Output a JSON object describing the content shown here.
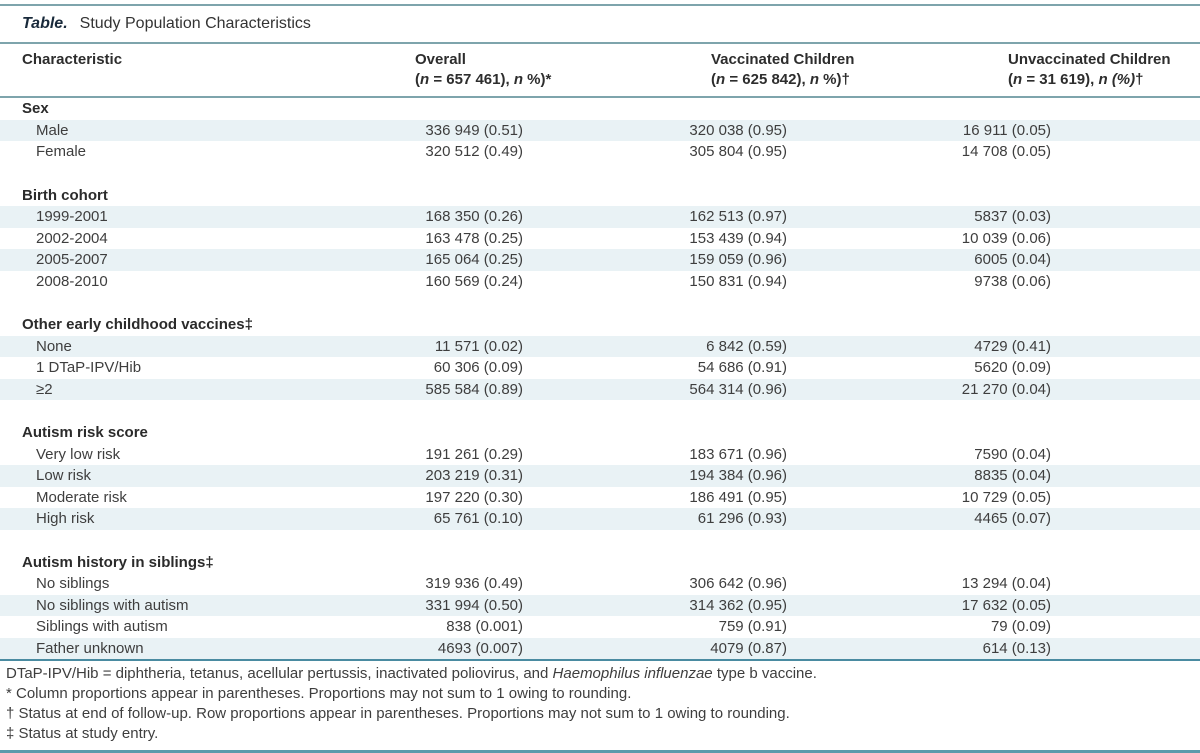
{
  "title": {
    "label": "Table.",
    "text": "Study Population Characteristics"
  },
  "colors": {
    "rule_teal": "#7ea4ac",
    "rule_blue": "#4a8ba1",
    "rule_bottom": "#5b9aab",
    "row_shade": "#e9f2f5",
    "text": "#3e3e3e"
  },
  "header": {
    "characteristic": "Characteristic",
    "columns": [
      {
        "name": "Overall",
        "sub_parts": [
          {
            "t": "("
          },
          {
            "t": "n",
            "i": true
          },
          {
            "t": " = 657 461), "
          },
          {
            "t": "n",
            "i": true
          },
          {
            "t": " %)*"
          }
        ]
      },
      {
        "name": "Vaccinated Children",
        "sub_parts": [
          {
            "t": "("
          },
          {
            "t": "n",
            "i": true
          },
          {
            "t": " = 625 842), "
          },
          {
            "t": "n",
            "i": true
          },
          {
            "t": " %)†"
          }
        ]
      },
      {
        "name": "Unvaccinated Children",
        "sub_parts": [
          {
            "t": "("
          },
          {
            "t": "n",
            "i": true
          },
          {
            "t": " = 31 619), "
          },
          {
            "t": "n (%)",
            "i": true
          },
          {
            "t": "†"
          }
        ]
      }
    ]
  },
  "sections": [
    {
      "header": "Sex",
      "rows": [
        {
          "label": "Male",
          "overall": "336 949 (0.51)",
          "vaccinated": "320 038 (0.95)",
          "unvaccinated": "16 911 (0.05)",
          "shaded": true
        },
        {
          "label": "Female",
          "overall": "320 512 (0.49)",
          "vaccinated": "305 804 (0.95)",
          "unvaccinated": "14 708 (0.05)",
          "shaded": false
        }
      ]
    },
    {
      "header": "Birth cohort",
      "rows": [
        {
          "label": "1999-2001",
          "overall": "168 350 (0.26)",
          "vaccinated": "162 513 (0.97)",
          "unvaccinated": "5837 (0.03)",
          "shaded": true
        },
        {
          "label": "2002-2004",
          "overall": "163 478 (0.25)",
          "vaccinated": "153 439 (0.94)",
          "unvaccinated": "10 039 (0.06)",
          "shaded": false
        },
        {
          "label": "2005-2007",
          "overall": "165 064 (0.25)",
          "vaccinated": "159 059 (0.96)",
          "unvaccinated": "6005 (0.04)",
          "shaded": true
        },
        {
          "label": "2008-2010",
          "overall": "160 569 (0.24)",
          "vaccinated": "150 831 (0.94)",
          "unvaccinated": "9738 (0.06)",
          "shaded": false
        }
      ]
    },
    {
      "header": "Other early childhood vaccines‡",
      "rows": [
        {
          "label": "None",
          "overall": "11 571 (0.02)",
          "vaccinated": "6 842 (0.59)",
          "unvaccinated": "4729 (0.41)",
          "shaded": true
        },
        {
          "label": "1 DTaP-IPV/Hib",
          "overall": "60 306 (0.09)",
          "vaccinated": "54 686 (0.91)",
          "unvaccinated": "5620 (0.09)",
          "shaded": false
        },
        {
          "label": "≥2",
          "overall": "585 584 (0.89)",
          "vaccinated": "564 314 (0.96)",
          "unvaccinated": "21 270 (0.04)",
          "shaded": true
        }
      ]
    },
    {
      "header": "Autism risk score",
      "rows": [
        {
          "label": "Very low risk",
          "overall": "191 261 (0.29)",
          "vaccinated": "183 671 (0.96)",
          "unvaccinated": "7590 (0.04)",
          "shaded": false
        },
        {
          "label": "Low risk",
          "overall": "203 219 (0.31)",
          "vaccinated": "194 384 (0.96)",
          "unvaccinated": "8835 (0.04)",
          "shaded": true
        },
        {
          "label": "Moderate risk",
          "overall": "197 220 (0.30)",
          "vaccinated": "186 491 (0.95)",
          "unvaccinated": "10 729 (0.05)",
          "shaded": false
        },
        {
          "label": "High risk",
          "overall": "65 761 (0.10)",
          "vaccinated": "61 296 (0.93)",
          "unvaccinated": "4465 (0.07)",
          "shaded": true
        }
      ]
    },
    {
      "header": "Autism history in siblings‡",
      "rows": [
        {
          "label": "No siblings",
          "overall": "319 936 (0.49)",
          "vaccinated": "306 642 (0.96)",
          "unvaccinated": "13 294 (0.04)",
          "shaded": false
        },
        {
          "label": "No siblings with autism",
          "overall": "331 994 (0.50)",
          "vaccinated": "314 362 (0.95)",
          "unvaccinated": "17 632 (0.05)",
          "shaded": true
        },
        {
          "label": "Siblings with autism",
          "overall": "838 (0.001)",
          "vaccinated": "759 (0.91)",
          "unvaccinated": "79 (0.09)",
          "shaded": false
        },
        {
          "label": "Father unknown",
          "overall": "4693 (0.007)",
          "vaccinated": "4079 (0.87)",
          "unvaccinated": "614 (0.13)",
          "shaded": true
        }
      ]
    }
  ],
  "footnotes": [
    {
      "parts": [
        {
          "t": "DTaP-IPV/Hib = diphtheria, tetanus, acellular pertussis, inactivated poliovirus, and "
        },
        {
          "t": "Haemophilus influenzae",
          "i": true
        },
        {
          "t": " type b vaccine."
        }
      ]
    },
    {
      "parts": [
        {
          "t": "* Column proportions appear in parentheses. Proportions may not sum to 1 owing to rounding."
        }
      ]
    },
    {
      "parts": [
        {
          "t": "† Status at end of follow-up. Row proportions appear in parentheses. Proportions may not sum to 1 owing to rounding."
        }
      ]
    },
    {
      "parts": [
        {
          "t": "‡ Status at study entry."
        }
      ]
    }
  ]
}
